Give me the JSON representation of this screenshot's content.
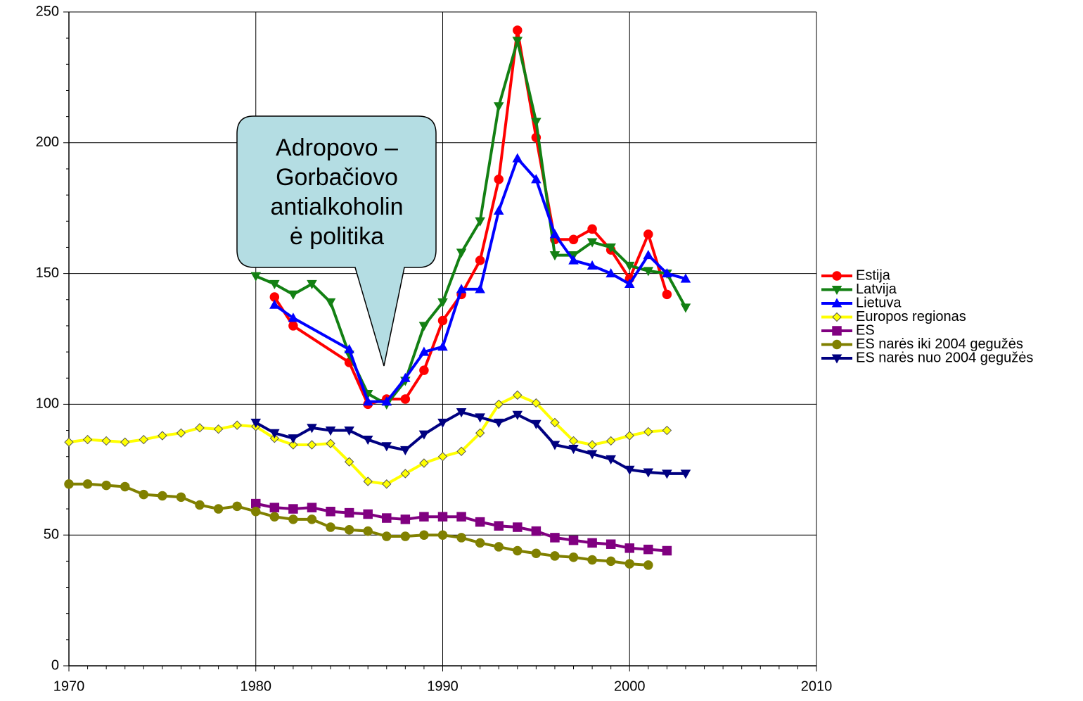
{
  "chart_data": {
    "type": "line",
    "annotation": [
      "Adropovo –",
      "Gorbačiovo",
      "antialkoholin",
      "ė politika"
    ],
    "xlim": [
      1970,
      2010
    ],
    "xticks": [
      1970,
      1980,
      1990,
      2000,
      2010
    ],
    "ylim": [
      0,
      250
    ],
    "yticks": [
      0,
      50,
      100,
      150,
      200,
      250
    ],
    "grid": true,
    "legend": "right",
    "series": [
      {
        "name": "Estija",
        "color": "#ff0000",
        "marker": "circle",
        "x": [
          1981,
          1982,
          1985,
          1986,
          1987,
          1988,
          1989,
          1990,
          1991,
          1992,
          1993,
          1994,
          1995,
          1996,
          1997,
          1998,
          1999,
          2000,
          2001,
          2002
        ],
        "values": [
          141,
          130,
          116,
          100,
          102,
          102,
          113,
          132,
          142,
          155,
          186,
          243,
          202,
          163,
          163,
          167,
          159,
          148,
          165,
          142
        ]
      },
      {
        "name": "Latvija",
        "color": "#138013",
        "marker": "triangle-down",
        "x": [
          1980,
          1981,
          1982,
          1983,
          1984,
          1985,
          1986,
          1987,
          1988,
          1989,
          1990,
          1991,
          1992,
          1993,
          1994,
          1995,
          1996,
          1997,
          1998,
          1999,
          2000,
          2001,
          2002,
          2003
        ],
        "values": [
          149,
          146,
          142,
          146,
          139,
          119,
          104,
          100,
          109,
          130,
          139,
          158,
          170,
          214,
          239,
          208,
          157,
          157,
          162,
          160,
          153,
          151,
          150,
          137
        ]
      },
      {
        "name": "Lietuva",
        "color": "#0000ff",
        "marker": "triangle-up",
        "x": [
          1981,
          1982,
          1985,
          1986,
          1987,
          1988,
          1989,
          1990,
          1991,
          1992,
          1993,
          1994,
          1995,
          1996,
          1997,
          1998,
          1999,
          2000,
          2001,
          2002,
          2003
        ],
        "values": [
          138,
          133,
          121,
          101,
          101,
          110,
          120,
          122,
          144,
          144,
          174,
          194,
          186,
          165,
          155,
          153,
          150,
          146,
          157,
          150,
          148
        ]
      },
      {
        "name": "Europos regionas",
        "color": "#ffff00",
        "marker": "diamond",
        "x": [
          1970,
          1971,
          1972,
          1973,
          1974,
          1975,
          1976,
          1977,
          1978,
          1979,
          1980,
          1981,
          1982,
          1983,
          1984,
          1985,
          1986,
          1987,
          1988,
          1989,
          1990,
          1991,
          1992,
          1993,
          1994,
          1995,
          1996,
          1997,
          1998,
          1999,
          2000,
          2001,
          2002
        ],
        "values": [
          85.5,
          86.5,
          86,
          85.5,
          86.5,
          88,
          89,
          91,
          90.5,
          92,
          91.5,
          87,
          84.5,
          84.5,
          85,
          78,
          70.5,
          69.5,
          73.5,
          77.5,
          80,
          82,
          89,
          100,
          103.5,
          100.5,
          93,
          86,
          84.5,
          86,
          88,
          89.5,
          90
        ]
      },
      {
        "name": "ES",
        "color": "#800080",
        "marker": "square",
        "x": [
          1980,
          1981,
          1982,
          1983,
          1984,
          1985,
          1986,
          1987,
          1988,
          1989,
          1990,
          1991,
          1992,
          1993,
          1994,
          1995,
          1996,
          1997,
          1998,
          1999,
          2000,
          2001,
          2002
        ],
        "values": [
          62,
          60.5,
          60,
          60.5,
          59,
          58.5,
          58,
          56.5,
          56,
          57,
          57,
          57,
          55,
          53.5,
          53,
          51.5,
          49,
          48,
          47,
          46.5,
          45,
          44.5,
          44
        ]
      },
      {
        "name": "ES narės iki 2004 gegužės",
        "color": "#808000",
        "marker": "circle",
        "x": [
          1970,
          1971,
          1972,
          1973,
          1974,
          1975,
          1976,
          1977,
          1978,
          1979,
          1980,
          1981,
          1982,
          1983,
          1984,
          1985,
          1986,
          1987,
          1988,
          1989,
          1990,
          1991,
          1992,
          1993,
          1994,
          1995,
          1996,
          1997,
          1998,
          1999,
          2000,
          2001
        ],
        "values": [
          69.5,
          69.5,
          69,
          68.5,
          65.5,
          65,
          64.5,
          61.5,
          60,
          61,
          59,
          57,
          56,
          56,
          53,
          52,
          51.5,
          49.5,
          49.5,
          50,
          50,
          49,
          47,
          45.5,
          44,
          43,
          42,
          41.5,
          40.5,
          40,
          39,
          38.5
        ]
      },
      {
        "name": "ES narės nuo 2004 gegužės",
        "color": "#000080",
        "marker": "triangle-down",
        "x": [
          1980,
          1981,
          1982,
          1983,
          1984,
          1985,
          1986,
          1987,
          1988,
          1989,
          1990,
          1991,
          1992,
          1993,
          1994,
          1995,
          1996,
          1997,
          1998,
          1999,
          2000,
          2001,
          2002,
          2003
        ],
        "values": [
          93,
          89,
          87,
          91,
          90,
          90,
          86.5,
          84,
          82.5,
          88.5,
          93,
          97,
          95,
          93,
          96,
          92.5,
          84.5,
          83,
          81,
          79,
          75,
          74,
          73.5,
          73.5
        ]
      }
    ]
  }
}
